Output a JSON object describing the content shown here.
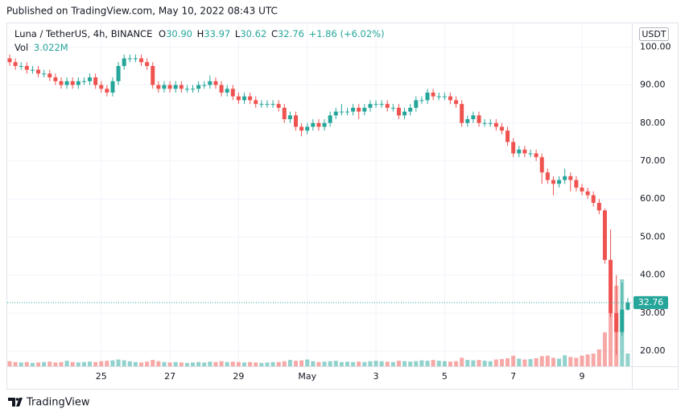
{
  "page": {
    "published": "Published on TradingView.com, May 10, 2022 08:43 UTC",
    "brand": "TradingView"
  },
  "chart_data": {
    "type": "candlestick",
    "header": {
      "symbol": "Luna / TetherUS, 4h, BINANCE",
      "ohlc": [
        {
          "key": "O",
          "value": "30.90"
        },
        {
          "key": "H",
          "value": "33.97"
        },
        {
          "key": "L",
          "value": "30.62"
        },
        {
          "key": "C",
          "value": "32.76"
        }
      ],
      "change": "+1.86 (+6.02%)",
      "volume_key": "Vol",
      "volume_label": "3.022M"
    },
    "currency": "USDT",
    "up_color": "#26a69a",
    "down_color": "#ef5350",
    "grid": true,
    "ylim": [
      16,
      106
    ],
    "yticks": [
      {
        "value": 20,
        "label": "20.00"
      },
      {
        "value": 30,
        "label": "30.00"
      },
      {
        "value": 40,
        "label": "40.00"
      },
      {
        "value": 50,
        "label": "50.00"
      },
      {
        "value": 60,
        "label": "60.00"
      },
      {
        "value": 70,
        "label": "70.00"
      },
      {
        "value": 80,
        "label": "80.00"
      },
      {
        "value": 90,
        "label": "90.00"
      },
      {
        "value": 100,
        "label": "100.00"
      }
    ],
    "categories": [
      null,
      null,
      null,
      null,
      null,
      null,
      null,
      null,
      null,
      null,
      null,
      null,
      null,
      null,
      null,
      null,
      "25",
      null,
      null,
      null,
      null,
      null,
      null,
      null,
      null,
      null,
      null,
      null,
      "27",
      null,
      null,
      null,
      null,
      null,
      null,
      null,
      null,
      null,
      null,
      null,
      "29",
      null,
      null,
      null,
      null,
      null,
      null,
      null,
      null,
      null,
      null,
      null,
      "May",
      null,
      null,
      null,
      null,
      null,
      null,
      null,
      null,
      null,
      null,
      null,
      "3",
      null,
      null,
      null,
      null,
      null,
      null,
      null,
      null,
      null,
      null,
      null,
      "5",
      null,
      null,
      null,
      null,
      null,
      null,
      null,
      null,
      null,
      null,
      null,
      "7",
      null,
      null,
      null,
      null,
      null,
      null,
      null,
      null,
      null,
      null,
      null,
      "9",
      null,
      null,
      null,
      null,
      null,
      null,
      null,
      null
    ],
    "open": [
      97,
      96,
      95,
      95,
      94,
      94,
      93,
      93,
      92,
      91,
      90,
      91,
      90,
      91,
      91,
      92,
      90,
      89,
      88,
      91,
      95,
      97,
      97,
      97,
      96,
      95,
      90,
      89,
      90,
      89,
      90,
      89,
      89,
      89,
      90,
      90,
      91,
      90,
      88,
      89,
      87,
      86,
      87,
      86,
      85,
      85,
      85,
      85,
      84,
      81,
      82,
      79,
      78,
      79,
      80,
      79,
      80,
      82,
      83,
      83,
      83,
      84,
      83,
      84,
      85,
      85,
      85,
      84,
      84,
      82,
      83,
      84,
      86,
      86,
      88,
      87,
      87,
      87,
      86,
      85,
      80,
      81,
      82,
      80,
      80,
      80,
      79,
      78,
      75,
      72,
      73,
      72,
      72,
      71,
      67,
      65,
      64,
      65,
      66,
      65,
      63,
      62,
      61,
      59,
      57,
      44,
      30,
      25,
      30.9
    ],
    "high": [
      98,
      97,
      96,
      96,
      95,
      95,
      94,
      94,
      93,
      92,
      92,
      92,
      92,
      92,
      93,
      93,
      91,
      90,
      92,
      96,
      98,
      98,
      98,
      98,
      97,
      96,
      91,
      91,
      91,
      91,
      91,
      90,
      90,
      91,
      91,
      92.5,
      92,
      91,
      90,
      90,
      88,
      88,
      88,
      87,
      86,
      86,
      86,
      86,
      85,
      83,
      83,
      80,
      80,
      81,
      81,
      81,
      83,
      84,
      85,
      84,
      85,
      85,
      85,
      86,
      86,
      86,
      86,
      85,
      85,
      84,
      85,
      87,
      87,
      89,
      89,
      88,
      88,
      88,
      87,
      86,
      82,
      83,
      83,
      81,
      81,
      81,
      80,
      79,
      76,
      74,
      74,
      73,
      73,
      72,
      68,
      66,
      66,
      68,
      67,
      66,
      64,
      63,
      62,
      60,
      57.5,
      52,
      40,
      38,
      33.97
    ],
    "low": [
      95,
      94,
      94,
      93,
      93,
      92,
      92,
      91,
      90,
      89,
      89,
      89,
      89,
      90,
      90,
      89,
      88,
      87,
      87,
      90,
      94,
      96,
      96,
      95,
      94,
      89,
      88,
      88,
      88,
      88,
      88,
      88,
      88,
      88,
      89,
      89,
      89,
      87,
      87,
      86,
      85,
      85,
      85,
      84,
      84,
      84,
      84,
      83,
      80,
      80,
      78,
      76.5,
      77,
      78,
      78,
      78,
      79,
      81,
      82,
      82,
      82,
      81,
      82,
      83,
      84,
      84,
      83,
      83,
      81,
      81,
      82,
      83,
      85,
      85,
      86,
      86,
      86,
      85,
      84,
      79,
      79,
      80,
      79,
      79,
      79,
      78,
      77,
      74,
      71,
      71,
      71,
      71,
      70,
      64,
      64,
      61,
      63,
      64,
      62,
      62,
      61,
      60,
      58,
      56,
      43,
      29,
      19,
      24,
      30.62
    ],
    "close": [
      96,
      95,
      95,
      94,
      94,
      93,
      93,
      92,
      91,
      90,
      91,
      90,
      91,
      91,
      92,
      90,
      89,
      88,
      91,
      95,
      97,
      97,
      97,
      96,
      95,
      90,
      89,
      90,
      89,
      90,
      89,
      89,
      89,
      90,
      90,
      91,
      90,
      88,
      89,
      87,
      86,
      87,
      86,
      85,
      85,
      85,
      85,
      84,
      81,
      82,
      79,
      78,
      79,
      80,
      79,
      80,
      82,
      83,
      83,
      83,
      84,
      83,
      84,
      85,
      85,
      85,
      84,
      84,
      82,
      83,
      84,
      86,
      86,
      88,
      87,
      87,
      87,
      86,
      85,
      80,
      81,
      82,
      80,
      80,
      80,
      79,
      78,
      75,
      72,
      73,
      72,
      72,
      71,
      67,
      65,
      64,
      65,
      66,
      65,
      63,
      62,
      61,
      59,
      57,
      44,
      30,
      25,
      30.9,
      32.76
    ],
    "volume": [
      1200000,
      1000000,
      900000,
      1000000,
      800000,
      900000,
      1000000,
      1100000,
      900000,
      1000000,
      1300000,
      1000000,
      900000,
      1000000,
      1100000,
      1000000,
      1200000,
      1300000,
      1400000,
      1600000,
      1400000,
      1200000,
      1000000,
      900000,
      1100000,
      1500000,
      1200000,
      1000000,
      900000,
      1000000,
      900000,
      800000,
      900000,
      1000000,
      900000,
      1100000,
      1000000,
      1200000,
      1000000,
      1100000,
      1000000,
      900000,
      1000000,
      900000,
      800000,
      900000,
      1000000,
      1000000,
      1200000,
      1500000,
      1300000,
      1400000,
      1600000,
      1200000,
      1000000,
      1100000,
      1200000,
      1300000,
      1000000,
      1100000,
      1000000,
      1100000,
      1000000,
      1200000,
      1300000,
      1200000,
      1100000,
      1000000,
      1300000,
      1200000,
      1100000,
      1200000,
      1400000,
      1300000,
      1500000,
      1300000,
      1200000,
      1100000,
      1200000,
      2000000,
      1500000,
      1400000,
      1500000,
      1300000,
      1200000,
      1600000,
      1700000,
      1900000,
      2500000,
      1800000,
      1600000,
      1700000,
      1900000,
      2400000,
      2500000,
      2000000,
      1800000,
      2600000,
      2200000,
      2000000,
      2500000,
      2800000,
      3000000,
      4000000,
      8000000,
      13000000,
      19000000,
      20500000,
      3022000
    ]
  }
}
